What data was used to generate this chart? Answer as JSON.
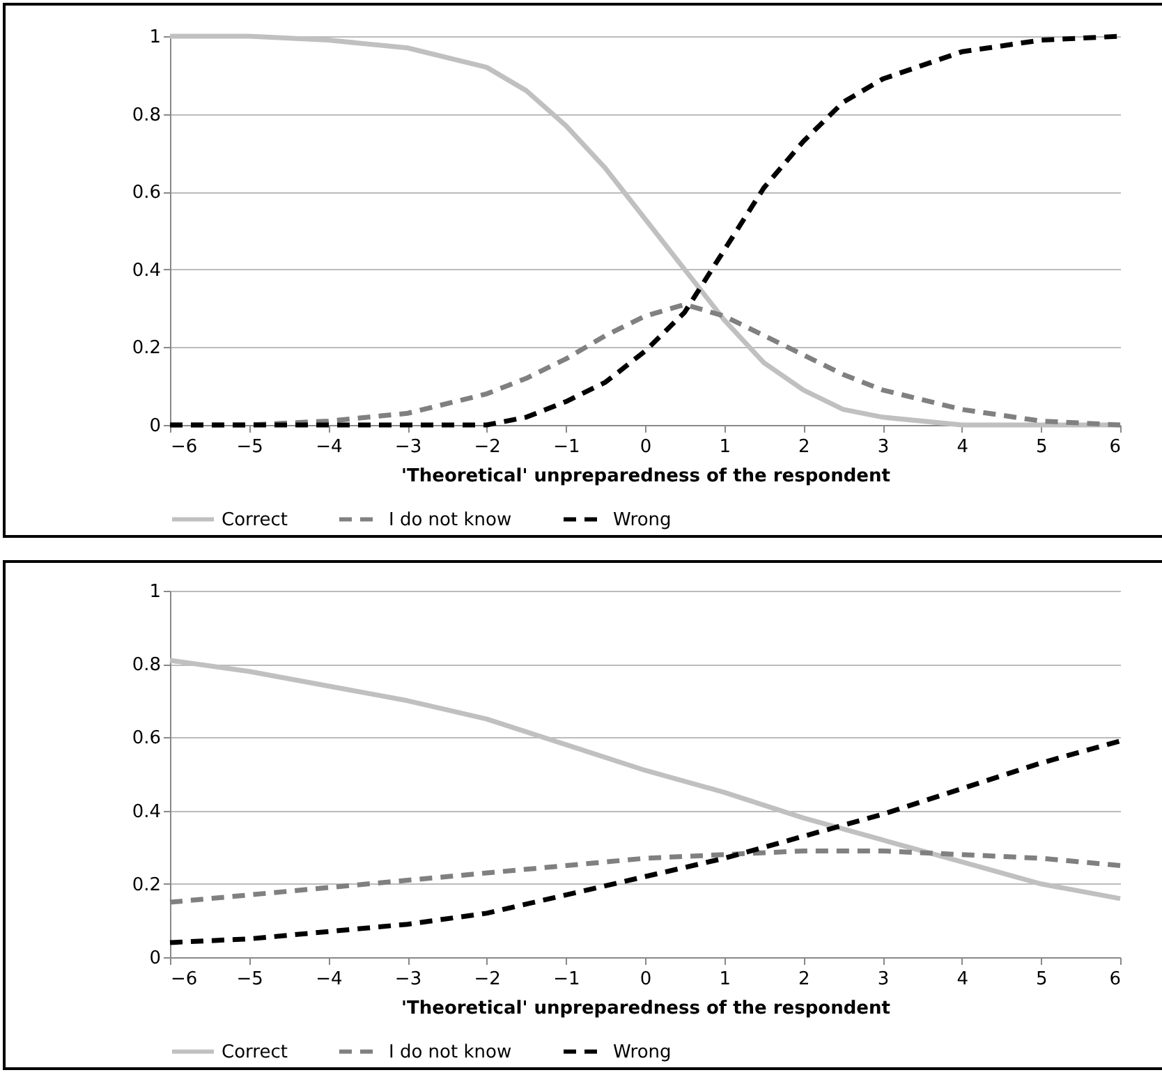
{
  "chart_data": [
    {
      "type": "line",
      "xlabel": "'Theoretical' unpreparedness of the respondent",
      "xlim": [
        -6,
        6
      ],
      "xticks": [
        -6,
        -5,
        -4,
        -3,
        -2,
        -1,
        0,
        1,
        2,
        3,
        4,
        5,
        6
      ],
      "ylim": [
        0,
        1
      ],
      "yticks": [
        0,
        0.2,
        0.4,
        0.6,
        0.8,
        1
      ],
      "grid": "y",
      "legend": "bottom",
      "x": [
        -6,
        -5,
        -4,
        -3,
        -2,
        -1.5,
        -1,
        -0.5,
        0,
        0.5,
        1,
        1.5,
        2,
        2.5,
        3,
        4,
        5,
        6
      ],
      "series": [
        {
          "name": "Correct",
          "color": "#c0c0c0",
          "line_style": "solid",
          "values": [
            1,
            1,
            0.99,
            0.97,
            0.92,
            0.86,
            0.77,
            0.66,
            0.53,
            0.4,
            0.27,
            0.16,
            0.09,
            0.04,
            0.02,
            0,
            0,
            0
          ]
        },
        {
          "name": "I do not know",
          "color": "#808080",
          "line_style": "dashed",
          "values": [
            0,
            0,
            0.01,
            0.03,
            0.08,
            0.12,
            0.17,
            0.23,
            0.28,
            0.31,
            0.28,
            0.23,
            0.18,
            0.13,
            0.09,
            0.04,
            0.01,
            0
          ]
        },
        {
          "name": "Wrong",
          "color": "#000000",
          "line_style": "dashed",
          "values": [
            0,
            0,
            0,
            0,
            0,
            0.02,
            0.06,
            0.11,
            0.19,
            0.29,
            0.45,
            0.61,
            0.73,
            0.83,
            0.89,
            0.96,
            0.99,
            1
          ]
        }
      ]
    },
    {
      "type": "line",
      "xlabel": "'Theoretical' unpreparedness of the respondent",
      "xlim": [
        -6,
        6
      ],
      "xticks": [
        -6,
        -5,
        -4,
        -3,
        -2,
        -1,
        0,
        1,
        2,
        3,
        4,
        5,
        6
      ],
      "ylim": [
        0,
        1
      ],
      "yticks": [
        0,
        0.2,
        0.4,
        0.6,
        0.8,
        1
      ],
      "grid": "y",
      "legend": "bottom",
      "x": [
        -6,
        -5,
        -4,
        -3,
        -2,
        -1,
        0,
        1,
        2,
        3,
        4,
        5,
        6
      ],
      "series": [
        {
          "name": "Correct",
          "color": "#c0c0c0",
          "line_style": "solid",
          "values": [
            0.81,
            0.78,
            0.74,
            0.7,
            0.65,
            0.58,
            0.51,
            0.45,
            0.38,
            0.32,
            0.26,
            0.2,
            0.16
          ]
        },
        {
          "name": "I do not know",
          "color": "#808080",
          "line_style": "dashed",
          "values": [
            0.15,
            0.17,
            0.19,
            0.21,
            0.23,
            0.25,
            0.27,
            0.28,
            0.29,
            0.29,
            0.28,
            0.27,
            0.25
          ]
        },
        {
          "name": "Wrong",
          "color": "#000000",
          "line_style": "dashed",
          "values": [
            0.04,
            0.05,
            0.07,
            0.09,
            0.12,
            0.17,
            0.22,
            0.27,
            0.33,
            0.39,
            0.46,
            0.53,
            0.59
          ]
        }
      ]
    }
  ]
}
